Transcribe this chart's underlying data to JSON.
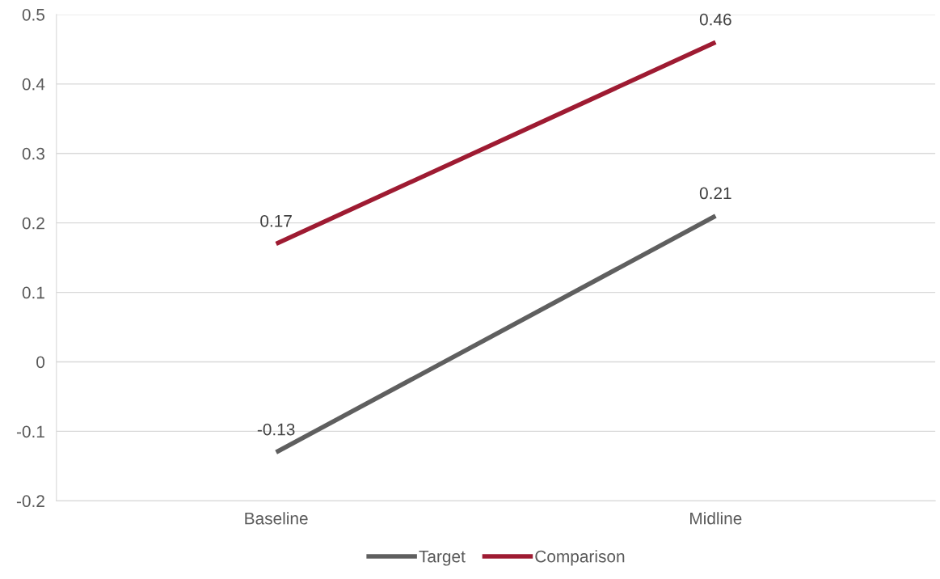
{
  "chart_data": {
    "type": "line",
    "categories": [
      "Baseline",
      "Midline"
    ],
    "series": [
      {
        "name": "Target",
        "color": "#5f5f5f",
        "values": [
          -0.13,
          0.21
        ]
      },
      {
        "name": "Comparison",
        "color": "#9e1b32",
        "values": [
          0.17,
          0.46
        ]
      }
    ],
    "ylim": [
      -0.2,
      0.5
    ],
    "yticks": [
      -0.2,
      -0.1,
      0,
      0.1,
      0.2,
      0.3,
      0.4,
      0.5
    ],
    "grid": "y",
    "legend": "bottom",
    "data_labels": true,
    "marker": "none",
    "line_style": "solid"
  }
}
